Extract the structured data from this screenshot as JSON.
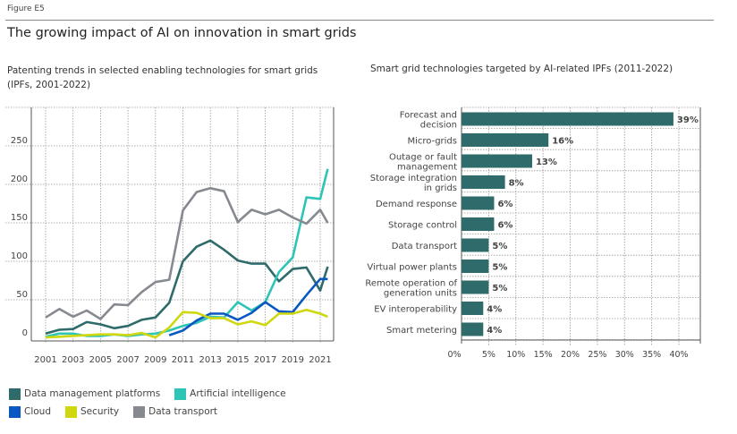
{
  "figure_label": "Figure E5",
  "title": "The growing impact of AI on innovation in smart grids",
  "chart_data": [
    {
      "type": "line",
      "title": "Patenting trends in selected enabling technologies for smart grids",
      "subtitle": "(IPFs, 2001-2022)",
      "xlabel": "",
      "ylabel": "",
      "x": [
        2001,
        2002,
        2003,
        2004,
        2005,
        2006,
        2007,
        2008,
        2009,
        2010,
        2011,
        2012,
        2013,
        2014,
        2015,
        2016,
        2017,
        2018,
        2019,
        2020,
        2021,
        2022
      ],
      "x_tick_labels": [
        "2001",
        "2003",
        "2005",
        "2007",
        "2009",
        "2011",
        "2013",
        "2015",
        "2017",
        "2019",
        "2021"
      ],
      "y_tick_labels": [
        "0",
        "50",
        "100",
        "150",
        "200",
        "250"
      ],
      "ylim": [
        0,
        300
      ],
      "grid": true,
      "legend_position": "bottom",
      "series": [
        {
          "name": "Data management platforms",
          "color": "#2e6b6a",
          "values": [
            6,
            11,
            12,
            21,
            18,
            13,
            16,
            24,
            27,
            46,
            100,
            119,
            127,
            115,
            101,
            97,
            97,
            74,
            90,
            92,
            62,
            93
          ]
        },
        {
          "name": "Artificial intelligence",
          "color": "#2ec4b6",
          "values": [
            2,
            6,
            6,
            3,
            3,
            5,
            3,
            5,
            6,
            10,
            16,
            20,
            28,
            27,
            47,
            36,
            47,
            86,
            105,
            183,
            181,
            220
          ]
        },
        {
          "name": "Cloud",
          "color": "#0a57c2",
          "values": [
            null,
            null,
            null,
            null,
            null,
            null,
            null,
            null,
            null,
            4,
            10,
            23,
            32,
            32,
            24,
            33,
            47,
            35,
            34,
            56,
            77,
            77
          ]
        },
        {
          "name": "Security",
          "color": "#cfd80f",
          "values": [
            1,
            2,
            3,
            4,
            5,
            5,
            4,
            7,
            1,
            14,
            34,
            33,
            26,
            26,
            18,
            22,
            17,
            32,
            32,
            37,
            32,
            28
          ]
        },
        {
          "name": "Data transport",
          "color": "#868a90",
          "values": [
            27,
            38,
            28,
            36,
            25,
            44,
            43,
            60,
            73,
            76,
            166,
            190,
            195,
            191,
            151,
            167,
            161,
            167,
            157,
            149,
            167,
            150
          ]
        }
      ]
    },
    {
      "type": "bar",
      "orientation": "horizontal",
      "title": "Smart grid technologies targeted by AI-related IPFs (2011-2022)",
      "categories": [
        "Forecast and\ndecision",
        "Micro-grids",
        "Outage or fault\nmanagement",
        "Storage integration\nin grids",
        "Demand response",
        "Storage control",
        "Data transport",
        "Virtual power plants",
        "Remote operation of\ngeneration units",
        "EV interoperability",
        "Smart metering"
      ],
      "values": [
        39,
        16,
        13,
        8,
        6,
        6,
        5,
        5,
        5,
        4,
        4
      ],
      "value_labels": [
        "39%",
        "16%",
        "13%",
        "8%",
        "6%",
        "6%",
        "5%",
        "5%",
        "5%",
        "4%",
        "4%"
      ],
      "x_tick_labels": [
        "0%",
        "5%",
        "10%",
        "15%",
        "20%",
        "25%",
        "30%",
        "35%",
        "40%"
      ],
      "xlim": [
        0,
        44
      ],
      "color": "#2e6b6a",
      "grid": true
    }
  ]
}
